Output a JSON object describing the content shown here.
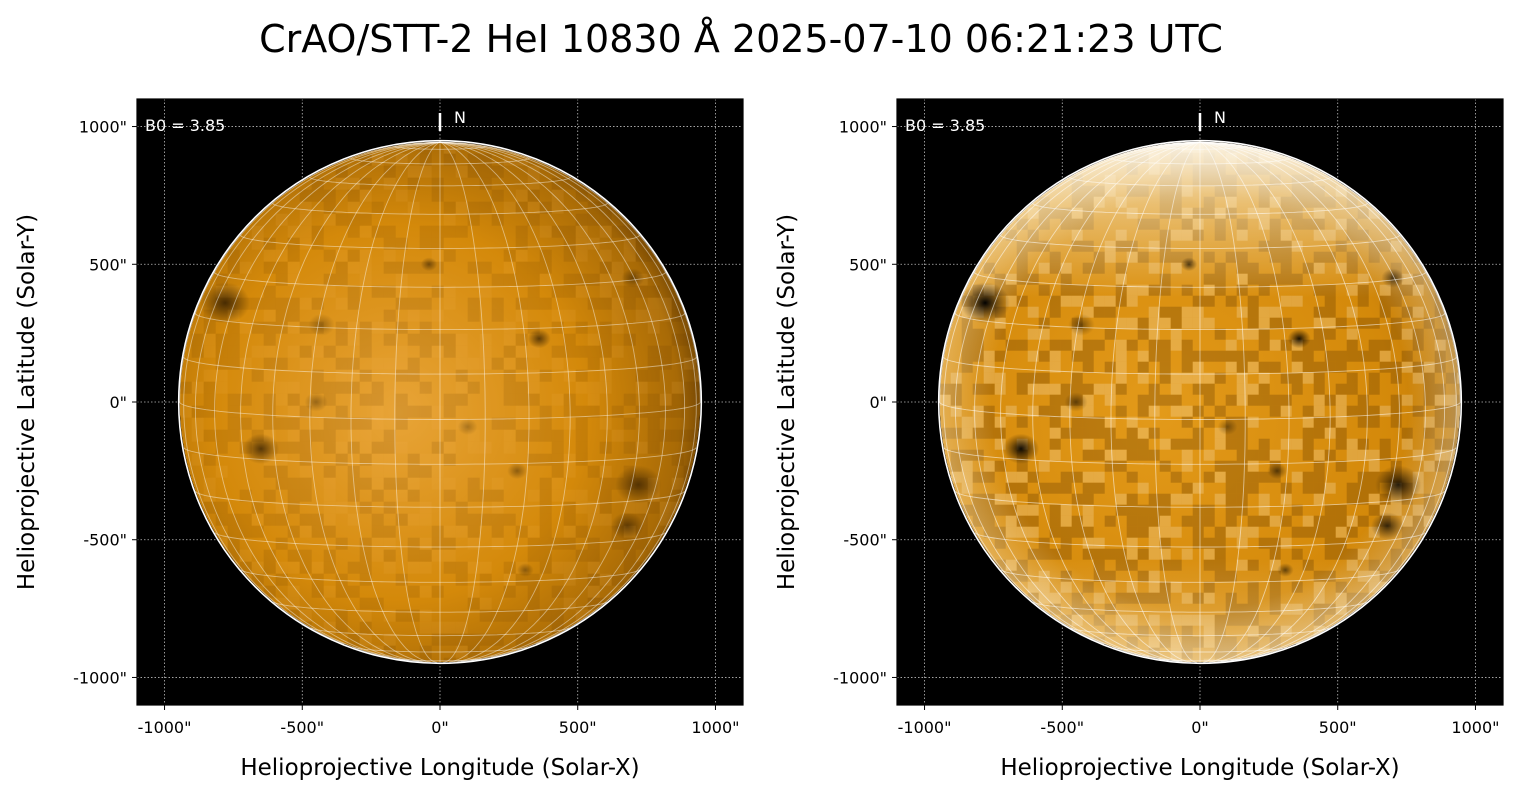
{
  "figure": {
    "title": "CrAO/STT-2 HeI 10830 Å 2025-07-10 06:21:23 UTC"
  },
  "colors": {
    "disk_base": "#d4890a",
    "disk_light": "#e8a437",
    "disk_dark": "#3a2000",
    "background": "#000000",
    "grid": "#ffffff"
  },
  "panels": [
    {
      "name": "left-panel",
      "variant": "normal",
      "xlabel": "Helioprojective Longitude (Solar-X)",
      "ylabel": "Helioprojective Latitude (Solar-Y)",
      "annotation": "B0 = 3.85",
      "north_label": "N"
    },
    {
      "name": "right-panel",
      "variant": "enhanced",
      "xlabel": "Helioprojective Longitude (Solar-X)",
      "ylabel": "Helioprojective Latitude (Solar-Y)",
      "annotation": "B0 = 3.85",
      "north_label": "N"
    }
  ],
  "axes": {
    "xlim": [
      -1100,
      1100
    ],
    "ylim": [
      -1100,
      1100
    ],
    "xticks": [
      -1000,
      -500,
      0,
      500,
      1000
    ],
    "yticks": [
      -1000,
      -500,
      0,
      500,
      1000
    ],
    "xtick_labels": [
      "-1000\"",
      "-500\"",
      "0\"",
      "500\"",
      "1000\""
    ],
    "ytick_labels": [
      "-1000\"",
      "-500\"",
      "0\"",
      "500\"",
      "1000\""
    ],
    "solar_radius_arcsec": 945,
    "heliographic_grid_step_deg": 10
  },
  "features": [
    {
      "x": -780,
      "y": 360,
      "r": 75,
      "strength": 0.9
    },
    {
      "x": -650,
      "y": -170,
      "r": 55,
      "strength": 0.85
    },
    {
      "x": 720,
      "y": -300,
      "r": 70,
      "strength": 0.75
    },
    {
      "x": 680,
      "y": -450,
      "r": 50,
      "strength": 0.65
    },
    {
      "x": 360,
      "y": 230,
      "r": 35,
      "strength": 0.8
    },
    {
      "x": -40,
      "y": 500,
      "r": 25,
      "strength": 0.6
    },
    {
      "x": 700,
      "y": 450,
      "r": 35,
      "strength": 0.55
    },
    {
      "x": 280,
      "y": -250,
      "r": 30,
      "strength": 0.5
    },
    {
      "x": -430,
      "y": 280,
      "r": 40,
      "strength": 0.4
    },
    {
      "x": 310,
      "y": -610,
      "r": 25,
      "strength": 0.5
    },
    {
      "x": -450,
      "y": 0,
      "r": 35,
      "strength": 0.45
    },
    {
      "x": 100,
      "y": -90,
      "r": 30,
      "strength": 0.35
    }
  ]
}
